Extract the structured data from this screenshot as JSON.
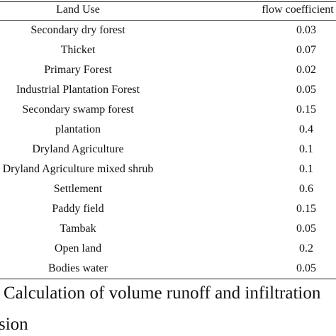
{
  "table": {
    "header": [
      "Land Use",
      "flow coefficient"
    ],
    "rows": [
      [
        "Secondary dry forest",
        0.03
      ],
      [
        "Thicket",
        0.07
      ],
      [
        "Primary Forest",
        0.02
      ],
      [
        "Industrial Plantation Forest",
        0.05
      ],
      [
        "Secondary swamp forest",
        0.15
      ],
      [
        "plantation",
        0.4
      ],
      [
        "Dryland Agriculture",
        0.1
      ],
      [
        "Dryland Agriculture mixed shrub",
        0.1
      ],
      [
        "Settlement",
        0.6
      ],
      [
        "Paddy field",
        0.15
      ],
      [
        "Tambak",
        0.05
      ],
      [
        "Open land",
        0.2
      ],
      [
        "Bodies water",
        0.05
      ]
    ]
  },
  "caption": [
    "Calculation of volume runoff and infiltration",
    "sion"
  ]
}
